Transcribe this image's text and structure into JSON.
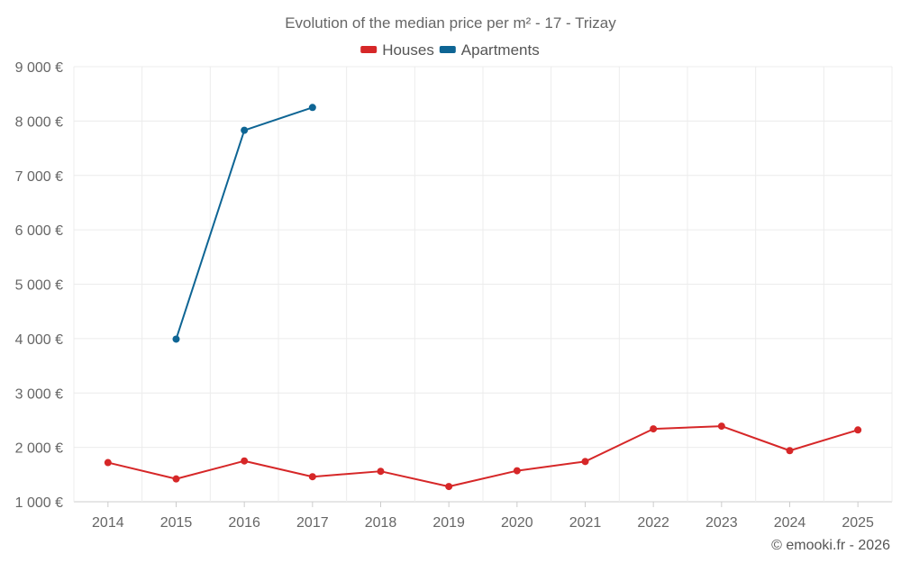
{
  "chart_data": {
    "type": "line",
    "title": "Evolution of the median price per m² - 17 - Trizay",
    "categories": [
      "2014",
      "2015",
      "2016",
      "2017",
      "2018",
      "2019",
      "2020",
      "2021",
      "2022",
      "2023",
      "2024",
      "2025"
    ],
    "ylim": [
      1000,
      9000
    ],
    "yticks": [
      1000,
      2000,
      3000,
      4000,
      5000,
      6000,
      7000,
      8000,
      9000
    ],
    "ytick_labels": [
      "1 000 €",
      "2 000 €",
      "3 000 €",
      "4 000 €",
      "5 000 €",
      "6 000 €",
      "7 000 €",
      "8 000 €",
      "9 000 €"
    ],
    "grid": true,
    "legend_position": "top-center",
    "series": [
      {
        "name": "Houses",
        "color": "#d62728",
        "values": [
          1720,
          1420,
          1750,
          1460,
          1560,
          1280,
          1570,
          1740,
          2340,
          2390,
          1940,
          2320
        ]
      },
      {
        "name": "Apartments",
        "color": "#0e6594",
        "values": [
          null,
          3990,
          7830,
          8250,
          null,
          null,
          null,
          null,
          null,
          null,
          null,
          null
        ]
      }
    ]
  },
  "credit": "© emooki.fr - 2026"
}
